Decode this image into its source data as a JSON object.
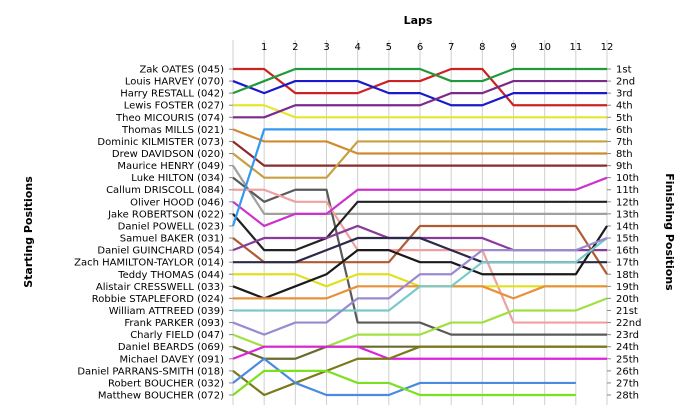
{
  "chart_data": {
    "type": "line",
    "title": "",
    "xlabel": "Laps",
    "ylabel_left": "Starting Positions",
    "ylabel_right": "Finishing Positions",
    "x": [
      0,
      1,
      2,
      3,
      4,
      5,
      6,
      7,
      8,
      9,
      10,
      11,
      12
    ],
    "x_tick_labels": [
      "1",
      "2",
      "3",
      "4",
      "5",
      "6",
      "7",
      "8",
      "9",
      "10",
      "11",
      "12"
    ],
    "y_range": [
      1,
      28
    ],
    "finishing_labels": [
      "1st",
      "2nd",
      "3rd",
      "4th",
      "5th",
      "6th",
      "7th",
      "8th",
      "9th",
      "10th",
      "11th",
      "12th",
      "13th",
      "14th",
      "15th",
      "16th",
      "17th",
      "18th",
      "19th",
      "20th",
      "21st",
      "22nd",
      "23rd",
      "24th",
      "25th",
      "26th",
      "27th",
      "28th"
    ],
    "series": [
      {
        "name": "Zak OATES (045)",
        "color": "#cc2222",
        "values": [
          1,
          1,
          3,
          3,
          3,
          2,
          2,
          1,
          1,
          4,
          4,
          4,
          4
        ]
      },
      {
        "name": "Louis HARVEY (070)",
        "color": "#1a1acc",
        "values": [
          2,
          3,
          2,
          2,
          2,
          3,
          3,
          4,
          4,
          3,
          3,
          3,
          3
        ]
      },
      {
        "name": "Harry RESTALL (042)",
        "color": "#22993a",
        "values": [
          3,
          2,
          1,
          1,
          1,
          1,
          1,
          2,
          2,
          1,
          1,
          1,
          1
        ]
      },
      {
        "name": "Lewis FOSTER (027)",
        "color": "#e6e62e",
        "values": [
          4,
          4,
          5,
          5,
          5,
          5,
          5,
          5,
          5,
          5,
          5,
          5,
          5
        ]
      },
      {
        "name": "Theo MICOURIS (074)",
        "color": "#7a2a8a",
        "values": [
          5,
          5,
          4,
          4,
          4,
          4,
          4,
          3,
          3,
          2,
          2,
          2,
          2
        ]
      },
      {
        "name": "Thomas MILLS (021)",
        "color": "#d08a30",
        "values": [
          6,
          7,
          7,
          7,
          8,
          8,
          8,
          8,
          8,
          8,
          8,
          8,
          8
        ]
      },
      {
        "name": "Dominic KILMISTER (073)",
        "color": "#8a2a2a",
        "values": [
          7,
          9,
          9,
          9,
          9,
          9,
          9,
          9,
          9,
          9,
          9,
          9,
          9
        ]
      },
      {
        "name": "Drew DAVIDSON (020)",
        "color": "#c8a040",
        "values": [
          8,
          10,
          10,
          10,
          7,
          7,
          7,
          7,
          7,
          7,
          7,
          7,
          7
        ]
      },
      {
        "name": "Maurice HENRY (049)",
        "color": "#a0a0a0",
        "values": [
          9,
          13,
          13,
          13,
          13,
          13,
          13,
          13,
          13,
          13,
          13,
          13,
          13
        ]
      },
      {
        "name": "Luke HILTON (034)",
        "color": "#5a5a5a",
        "values": [
          10,
          12,
          11,
          11,
          22,
          22,
          22,
          23,
          23,
          23,
          23,
          23,
          23
        ]
      },
      {
        "name": "Callum DRISCOLL (084)",
        "color": "#f0a0a0",
        "values": [
          11,
          11,
          12,
          12,
          16,
          16,
          16,
          16,
          16,
          22,
          22,
          22,
          22
        ]
      },
      {
        "name": "Oliver HOOD (046)",
        "color": "#cc33cc",
        "values": [
          12,
          14,
          13,
          13,
          11,
          11,
          11,
          11,
          11,
          11,
          11,
          11,
          10
        ]
      },
      {
        "name": "Jake ROBERTSON (022)",
        "color": "#222222",
        "values": [
          13,
          16,
          16,
          15,
          12,
          12,
          12,
          12,
          12,
          12,
          12,
          12,
          12
        ]
      },
      {
        "name": "Daniel POWELL (023)",
        "color": "#3399ee",
        "values": [
          14,
          6,
          6,
          6,
          6,
          6,
          6,
          6,
          6,
          6,
          6,
          6,
          6
        ]
      },
      {
        "name": "Samuel BAKER (031)",
        "color": "#b05a30",
        "values": [
          15,
          17,
          17,
          17,
          17,
          17,
          14,
          14,
          14,
          14,
          14,
          14,
          18
        ]
      },
      {
        "name": "Daniel GUINCHARD (054)",
        "color": "#8a3a9a",
        "values": [
          16,
          15,
          15,
          15,
          14,
          15,
          15,
          15,
          15,
          16,
          16,
          16,
          16
        ]
      },
      {
        "name": "Zach HAMILTON-TAYLOR (014)",
        "color": "#2a2a4a",
        "values": [
          17,
          17,
          17,
          16,
          15,
          15,
          15,
          16,
          17,
          17,
          17,
          17,
          17
        ]
      },
      {
        "name": "Teddy THOMAS (044)",
        "color": "#e0e020",
        "values": [
          18,
          18,
          18,
          19,
          18,
          18,
          19,
          19,
          19,
          19,
          19,
          19,
          19
        ]
      },
      {
        "name": "Alistair CRESSWELL (033)",
        "color": "#1a1a1a",
        "values": [
          19,
          20,
          19,
          18,
          16,
          16,
          17,
          17,
          18,
          18,
          18,
          18,
          14
        ]
      },
      {
        "name": "Robbie STAPLEFORD (024)",
        "color": "#e8903a",
        "values": [
          20,
          20,
          20,
          20,
          19,
          19,
          19,
          19,
          19,
          20,
          19,
          19,
          19
        ]
      },
      {
        "name": "William ATTREED (039)",
        "color": "#7acaca",
        "values": [
          21,
          21,
          21,
          21,
          21,
          21,
          19,
          19,
          17,
          17,
          17,
          17,
          15
        ]
      },
      {
        "name": "Frank PARKER (093)",
        "color": "#9a8ad0",
        "values": [
          22,
          23,
          22,
          22,
          20,
          20,
          18,
          18,
          16,
          16,
          16,
          16,
          15
        ]
      },
      {
        "name": "Charly FIELD (047)",
        "color": "#a0e040",
        "values": [
          23,
          24,
          24,
          24,
          23,
          23,
          23,
          22,
          22,
          21,
          21,
          21,
          20
        ]
      },
      {
        "name": "Daniel BEARDS (069)",
        "color": "#6a6a2a",
        "values": [
          24,
          25,
          25,
          24,
          24,
          24,
          24,
          24,
          24,
          24,
          24,
          24,
          24
        ]
      },
      {
        "name": "Michael DAVEY (091)",
        "color": "#dd22dd",
        "values": [
          25,
          24,
          24,
          24,
          24,
          25,
          25,
          25,
          25,
          25,
          25,
          25,
          25
        ]
      },
      {
        "name": "Daniel PARRANS-SMITH (018)",
        "color": "#7a7a1a",
        "values": [
          26,
          28,
          27,
          26,
          25,
          25,
          24,
          24,
          24,
          24,
          24,
          24,
          24
        ]
      },
      {
        "name": "Robert BOUCHER (032)",
        "color": "#4a8ae0",
        "values": [
          27,
          25,
          27,
          28,
          28,
          28,
          27,
          27,
          27,
          27,
          27,
          27,
          null
        ]
      },
      {
        "name": "Matthew BOUCHER (072)",
        "color": "#7ae020",
        "values": [
          28,
          26,
          26,
          26,
          27,
          27,
          28,
          28,
          28,
          28,
          28,
          28,
          null
        ]
      }
    ]
  }
}
